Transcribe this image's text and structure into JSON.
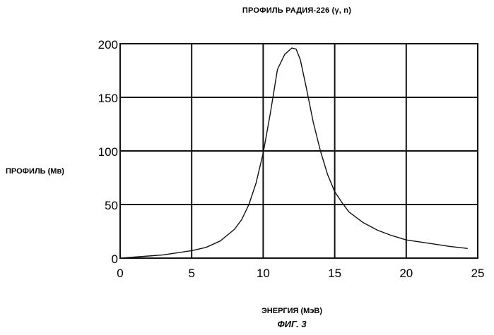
{
  "figure_label": "ФИГ. 3",
  "chart_data": {
    "type": "line",
    "title": "ПРОФИЛЬ РАДИЯ-226 (γ, n)",
    "xlabel": "ЭНЕРГИЯ (МэВ)",
    "ylabel": "ПРОФИЛЬ (Мв)",
    "xlim": [
      0,
      25
    ],
    "ylim": [
      0,
      200
    ],
    "xticks": [
      0,
      5,
      10,
      15,
      20,
      25
    ],
    "yticks": [
      0,
      50,
      100,
      150,
      200
    ],
    "xtick_labels": [
      "0",
      "5",
      "10",
      "15",
      "20",
      "25"
    ],
    "ytick_labels": [
      "0",
      "50",
      "100",
      "150",
      "200"
    ],
    "grid": true,
    "series": [
      {
        "x": [
          0,
          1,
          2,
          3,
          4,
          5,
          6,
          7,
          8,
          8.5,
          9,
          9.5,
          10,
          10.5,
          11,
          11.5,
          12,
          12.3,
          12.6,
          13,
          13.5,
          14,
          14.5,
          15,
          15.5,
          16,
          17,
          18,
          19,
          20,
          21,
          22,
          23,
          24.3
        ],
        "y": [
          0,
          1,
          2,
          3,
          5,
          7,
          10,
          16,
          27,
          36,
          50,
          70,
          98,
          135,
          176,
          190,
          196,
          195,
          185,
          160,
          127,
          100,
          78,
          62,
          52,
          43,
          33,
          26,
          21,
          17,
          15,
          13,
          11,
          9
        ]
      }
    ]
  }
}
